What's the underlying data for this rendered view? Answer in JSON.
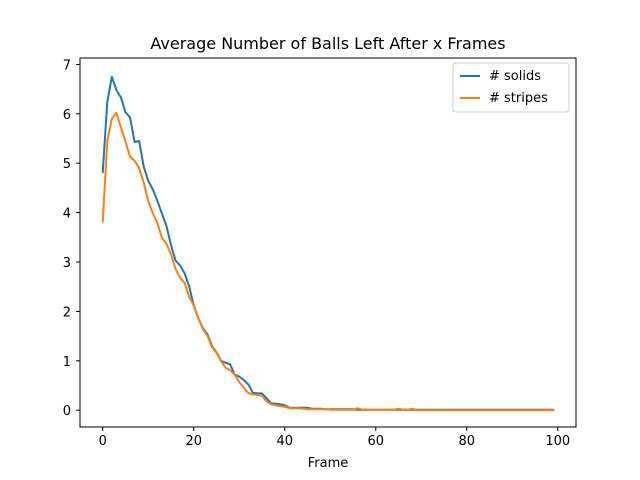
{
  "chart_data": {
    "type": "line",
    "title": "Average Number of Balls Left After x Frames",
    "xlabel": "Frame",
    "ylabel": "",
    "xlim": [
      -5,
      104
    ],
    "ylim": [
      -0.34,
      7.13
    ],
    "xticks": [
      0,
      20,
      40,
      60,
      80,
      100
    ],
    "yticks": [
      0,
      1,
      2,
      3,
      4,
      5,
      6,
      7
    ],
    "grid": false,
    "legend_position": "top-right",
    "series": [
      {
        "name": "# solids",
        "color": "#1f77b4",
        "points": [
          [
            0,
            4.82
          ],
          [
            1,
            6.24
          ],
          [
            2,
            6.75
          ],
          [
            3,
            6.48
          ],
          [
            4,
            6.33
          ],
          [
            5,
            6.03
          ],
          [
            6,
            5.93
          ],
          [
            7,
            5.43
          ],
          [
            8,
            5.45
          ],
          [
            9,
            4.93
          ],
          [
            10,
            4.64
          ],
          [
            11,
            4.47
          ],
          [
            12,
            4.24
          ],
          [
            13,
            3.98
          ],
          [
            14,
            3.73
          ],
          [
            15,
            3.34
          ],
          [
            16,
            3.03
          ],
          [
            17,
            2.93
          ],
          [
            18,
            2.77
          ],
          [
            19,
            2.5
          ],
          [
            20,
            2.12
          ],
          [
            21,
            1.86
          ],
          [
            22,
            1.66
          ],
          [
            23,
            1.54
          ],
          [
            24,
            1.3
          ],
          [
            25,
            1.17
          ],
          [
            26,
            1.0
          ],
          [
            27,
            0.96
          ],
          [
            28,
            0.93
          ],
          [
            29,
            0.72
          ],
          [
            30,
            0.68
          ],
          [
            31,
            0.61
          ],
          [
            32,
            0.52
          ],
          [
            33,
            0.35
          ],
          [
            34,
            0.34
          ],
          [
            35,
            0.34
          ],
          [
            36,
            0.24
          ],
          [
            37,
            0.14
          ],
          [
            38,
            0.13
          ],
          [
            39,
            0.12
          ],
          [
            40,
            0.1
          ],
          [
            41,
            0.05
          ],
          [
            42,
            0.05
          ],
          [
            43,
            0.05
          ],
          [
            44,
            0.05
          ],
          [
            45,
            0.05
          ],
          [
            46,
            0.03
          ],
          [
            47,
            0.03
          ],
          [
            48,
            0.03
          ],
          [
            49,
            0.02
          ],
          [
            50,
            0.02
          ],
          [
            51,
            0.02
          ],
          [
            52,
            0.02
          ],
          [
            53,
            0.02
          ],
          [
            54,
            0.02
          ],
          [
            55,
            0.02
          ],
          [
            56,
            0.01
          ],
          [
            57,
            0.01
          ],
          [
            58,
            0.01
          ],
          [
            59,
            0.01
          ],
          [
            60,
            0.01
          ],
          [
            61,
            0.01
          ],
          [
            62,
            0.01
          ],
          [
            63,
            0.01
          ],
          [
            64,
            0.01
          ],
          [
            65,
            0.01
          ],
          [
            66,
            0.01
          ],
          [
            67,
            0.01
          ],
          [
            68,
            0.01
          ],
          [
            69,
            0.01
          ],
          [
            70,
            0.01
          ],
          [
            71,
            0.01
          ],
          [
            72,
            0.01
          ],
          [
            73,
            0.01
          ],
          [
            74,
            0.01
          ],
          [
            75,
            0.01
          ],
          [
            76,
            0.01
          ],
          [
            77,
            0.01
          ],
          [
            78,
            0.01
          ],
          [
            79,
            0.01
          ],
          [
            80,
            0.01
          ],
          [
            81,
            0.01
          ],
          [
            82,
            0.01
          ],
          [
            83,
            0.01
          ],
          [
            84,
            0.01
          ],
          [
            85,
            0.01
          ],
          [
            86,
            0.01
          ],
          [
            87,
            0.01
          ],
          [
            88,
            0.01
          ],
          [
            89,
            0.01
          ],
          [
            90,
            0.01
          ],
          [
            91,
            0.01
          ],
          [
            92,
            0.01
          ],
          [
            93,
            0.01
          ],
          [
            94,
            0.01
          ],
          [
            95,
            0.01
          ],
          [
            96,
            0.01
          ],
          [
            97,
            0.01
          ],
          [
            98,
            0.01
          ],
          [
            99,
            0.01
          ]
        ]
      },
      {
        "name": "# stripes",
        "color": "#ff7f0e",
        "points": [
          [
            0,
            3.82
          ],
          [
            1,
            5.45
          ],
          [
            2,
            5.9
          ],
          [
            3,
            6.02
          ],
          [
            4,
            5.72
          ],
          [
            5,
            5.44
          ],
          [
            6,
            5.13
          ],
          [
            7,
            5.05
          ],
          [
            8,
            4.9
          ],
          [
            9,
            4.61
          ],
          [
            10,
            4.23
          ],
          [
            11,
            3.99
          ],
          [
            12,
            3.79
          ],
          [
            13,
            3.49
          ],
          [
            14,
            3.37
          ],
          [
            15,
            3.16
          ],
          [
            16,
            2.86
          ],
          [
            17,
            2.68
          ],
          [
            18,
            2.58
          ],
          [
            19,
            2.29
          ],
          [
            20,
            2.12
          ],
          [
            21,
            1.87
          ],
          [
            22,
            1.64
          ],
          [
            23,
            1.51
          ],
          [
            24,
            1.28
          ],
          [
            25,
            1.16
          ],
          [
            26,
            0.99
          ],
          [
            27,
            0.86
          ],
          [
            28,
            0.81
          ],
          [
            29,
            0.72
          ],
          [
            30,
            0.57
          ],
          [
            31,
            0.45
          ],
          [
            32,
            0.35
          ],
          [
            33,
            0.32
          ],
          [
            34,
            0.31
          ],
          [
            35,
            0.29
          ],
          [
            36,
            0.18
          ],
          [
            37,
            0.12
          ],
          [
            38,
            0.1
          ],
          [
            39,
            0.08
          ],
          [
            40,
            0.07
          ],
          [
            41,
            0.04
          ],
          [
            42,
            0.04
          ],
          [
            43,
            0.04
          ],
          [
            44,
            0.03
          ],
          [
            45,
            0.02
          ],
          [
            46,
            0.02
          ],
          [
            47,
            0.02
          ],
          [
            48,
            0.02
          ],
          [
            49,
            0.02
          ],
          [
            50,
            0.01
          ],
          [
            51,
            0.01
          ],
          [
            52,
            0.01
          ],
          [
            53,
            0.01
          ],
          [
            54,
            0.01
          ],
          [
            55,
            0.01
          ],
          [
            56,
            0.04
          ],
          [
            57,
            0.01
          ],
          [
            58,
            0.01
          ],
          [
            59,
            0.01
          ],
          [
            60,
            0.01
          ],
          [
            61,
            0.01
          ],
          [
            62,
            0.01
          ],
          [
            63,
            0.01
          ],
          [
            64,
            0.01
          ],
          [
            65,
            0.03
          ],
          [
            66,
            0.01
          ],
          [
            67,
            0.01
          ],
          [
            68,
            0.03
          ],
          [
            69,
            0.0
          ],
          [
            70,
            0.0
          ],
          [
            71,
            0.0
          ],
          [
            72,
            0.0
          ],
          [
            73,
            0.0
          ],
          [
            74,
            0.0
          ],
          [
            75,
            0.0
          ],
          [
            76,
            0.0
          ],
          [
            77,
            0.0
          ],
          [
            78,
            0.0
          ],
          [
            79,
            0.0
          ],
          [
            80,
            0.0
          ],
          [
            81,
            0.0
          ],
          [
            82,
            0.0
          ],
          [
            83,
            0.0
          ],
          [
            84,
            0.0
          ],
          [
            85,
            0.0
          ],
          [
            86,
            0.0
          ],
          [
            87,
            0.0
          ],
          [
            88,
            0.0
          ],
          [
            89,
            0.0
          ],
          [
            90,
            0.0
          ],
          [
            91,
            0.0
          ],
          [
            92,
            0.0
          ],
          [
            93,
            0.0
          ],
          [
            94,
            0.0
          ],
          [
            95,
            0.0
          ],
          [
            96,
            0.0
          ],
          [
            97,
            0.0
          ],
          [
            98,
            0.0
          ],
          [
            99,
            0.0
          ]
        ]
      }
    ]
  }
}
